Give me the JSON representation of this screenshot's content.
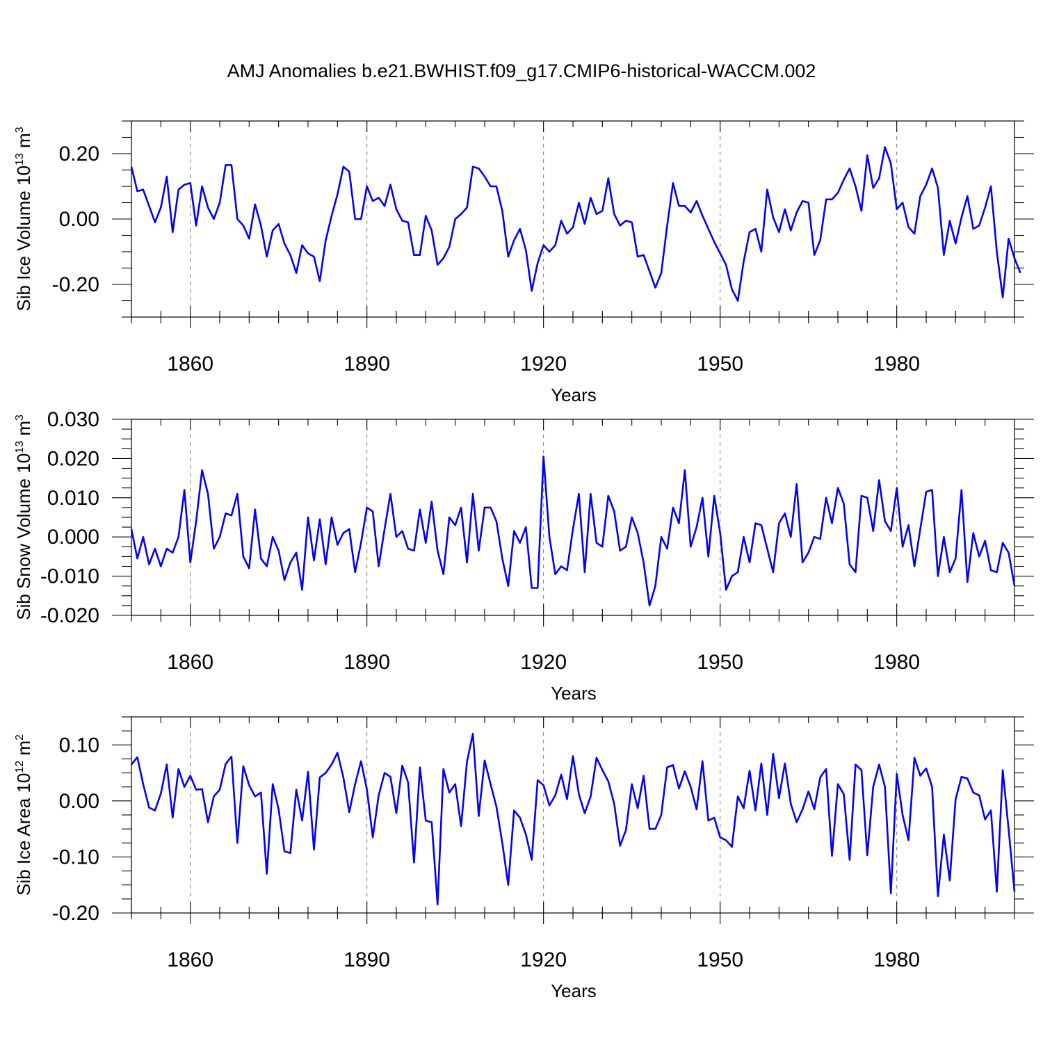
{
  "title": "AMJ Anomalies b.e21.BWHIST.f09_g17.CMIP6-historical-WACCM.002",
  "line_color": "#0000ff",
  "chart_data": [
    {
      "type": "line",
      "title": "AMJ Anomalies b.e21.BWHIST.f09_g17.CMIP6-historical-WACCM.002",
      "ylabel": "Sib Ice Volume 10",
      "ylabel_exp": "13",
      "ylabel_unit": " m",
      "ylabel_unit_exp": "3",
      "xlabel": "Years",
      "xlim": [
        1850,
        2000
      ],
      "ylim": [
        -0.3,
        0.3
      ],
      "yticks": [
        -0.2,
        0.0,
        0.2
      ],
      "ytick_labels": [
        "-0.20",
        "0.00",
        "0.20"
      ],
      "yminor": 0.05,
      "xticks": [
        1860,
        1890,
        1920,
        1950,
        1980
      ],
      "xtick_labels": [
        "1860",
        "1890",
        "1920",
        "1950",
        "1980"
      ],
      "x_start": 1850,
      "grid": "vertical dashed at major x ticks",
      "values": [
        0.16,
        0.085,
        0.09,
        0.04,
        -0.01,
        0.035,
        0.13,
        -0.04,
        0.09,
        0.105,
        0.11,
        -0.02,
        0.1,
        0.035,
        0.0,
        0.05,
        0.165,
        0.165,
        0.0,
        -0.02,
        -0.06,
        0.045,
        -0.02,
        -0.115,
        -0.035,
        -0.015,
        -0.075,
        -0.11,
        -0.165,
        -0.08,
        -0.105,
        -0.115,
        -0.19,
        -0.065,
        0.01,
        0.075,
        0.16,
        0.145,
        0.0,
        0.0,
        0.1,
        0.055,
        0.065,
        0.04,
        0.105,
        0.03,
        -0.005,
        -0.01,
        -0.11,
        -0.11,
        0.01,
        -0.035,
        -0.14,
        -0.12,
        -0.085,
        0.0,
        0.015,
        0.035,
        0.16,
        0.155,
        0.13,
        0.1,
        0.1,
        0.025,
        -0.115,
        -0.065,
        -0.03,
        -0.095,
        -0.22,
        -0.135,
        -0.08,
        -0.1,
        -0.08,
        -0.005,
        -0.045,
        -0.025,
        0.05,
        -0.015,
        0.065,
        0.015,
        0.025,
        0.125,
        0.015,
        -0.02,
        -0.005,
        -0.01,
        -0.115,
        -0.11,
        -0.16,
        -0.21,
        -0.165,
        -0.02,
        0.11,
        0.04,
        0.04,
        0.02,
        0.055,
        0.01,
        -0.03,
        -0.07,
        -0.105,
        -0.14,
        -0.215,
        -0.25,
        -0.13,
        -0.04,
        -0.03,
        -0.1,
        0.09,
        0.005,
        -0.04,
        0.03,
        -0.035,
        0.02,
        0.055,
        0.05,
        -0.11,
        -0.065,
        0.06,
        0.06,
        0.08,
        0.12,
        0.155,
        0.1,
        0.025,
        0.195,
        0.095,
        0.125,
        0.22,
        0.17,
        0.03,
        0.05,
        -0.025,
        -0.045,
        0.07,
        0.105,
        0.155,
        0.095,
        -0.11,
        -0.005,
        -0.075,
        0.005,
        0.07,
        -0.03,
        -0.02,
        0.035,
        0.1,
        -0.1,
        -0.24,
        -0.06,
        -0.12,
        -0.165
      ]
    },
    {
      "type": "line",
      "ylabel": "Sib Snow Volume 10",
      "ylabel_exp": "13",
      "ylabel_unit": " m",
      "ylabel_unit_exp": "3",
      "xlabel": "Years",
      "xlim": [
        1850,
        2000
      ],
      "ylim": [
        -0.02,
        0.03
      ],
      "yticks": [
        -0.02,
        -0.01,
        0.0,
        0.01,
        0.02,
        0.03
      ],
      "ytick_labels": [
        "-0.020",
        "-0.010",
        "0.000",
        "0.010",
        "0.020",
        "0.030"
      ],
      "yminor": 0.0025,
      "xticks": [
        1860,
        1890,
        1920,
        1950,
        1980
      ],
      "xtick_labels": [
        "1860",
        "1890",
        "1920",
        "1950",
        "1980"
      ],
      "x_start": 1850,
      "grid": "vertical dashed at major x ticks",
      "values": [
        0.002,
        -0.0055,
        0.0,
        -0.007,
        -0.003,
        -0.0075,
        -0.003,
        -0.004,
        0.0,
        0.012,
        -0.0065,
        0.004,
        0.017,
        0.011,
        -0.003,
        0.0,
        0.006,
        0.0055,
        0.011,
        -0.005,
        -0.008,
        0.007,
        -0.0055,
        -0.0075,
        0.0,
        -0.0035,
        -0.011,
        -0.0065,
        -0.004,
        -0.0135,
        0.005,
        -0.006,
        0.0045,
        -0.007,
        0.005,
        -0.002,
        0.001,
        0.002,
        -0.009,
        -0.0015,
        0.0075,
        0.0065,
        -0.0075,
        0.002,
        0.011,
        0.0,
        0.0015,
        -0.003,
        -0.0035,
        0.007,
        -0.0015,
        0.009,
        -0.0035,
        -0.0095,
        0.005,
        0.003,
        0.0075,
        -0.0065,
        0.011,
        -0.0035,
        0.0075,
        0.0075,
        0.004,
        -0.0055,
        -0.0125,
        0.0015,
        -0.0015,
        0.0025,
        -0.013,
        -0.013,
        0.0205,
        0.0,
        -0.0095,
        -0.0075,
        -0.0085,
        0.002,
        0.011,
        -0.009,
        0.011,
        -0.0015,
        -0.0025,
        0.0105,
        0.0065,
        -0.0035,
        -0.0025,
        0.005,
        0.001,
        -0.0065,
        -0.0175,
        -0.0125,
        0.0,
        -0.003,
        0.0075,
        0.0035,
        0.017,
        -0.0025,
        0.0025,
        0.01,
        -0.005,
        0.0105,
        0.001,
        -0.0135,
        -0.01,
        -0.009,
        0.0,
        -0.0065,
        0.0035,
        0.003,
        -0.003,
        -0.009,
        0.0035,
        0.006,
        0.0,
        0.0135,
        -0.0065,
        -0.004,
        0.0,
        -0.0005,
        0.01,
        0.0035,
        0.0125,
        0.0085,
        -0.007,
        -0.009,
        0.0105,
        0.01,
        0.0015,
        0.0145,
        0.004,
        0.0015,
        0.0125,
        -0.0025,
        0.003,
        -0.0075,
        0.002,
        0.0115,
        0.012,
        -0.01,
        0.0,
        -0.009,
        -0.0055,
        0.012,
        -0.0115,
        0.001,
        -0.005,
        -0.001,
        -0.0085,
        -0.009,
        -0.0015,
        -0.004,
        -0.0125
      ]
    },
    {
      "type": "line",
      "ylabel": "Sib Ice Area 10",
      "ylabel_exp": "12",
      "ylabel_unit": " m",
      "ylabel_unit_exp": "2",
      "xlabel": "Years",
      "xlim": [
        1850,
        2000
      ],
      "ylim": [
        -0.2,
        0.15
      ],
      "yticks": [
        -0.2,
        -0.1,
        0.0,
        0.1
      ],
      "ytick_labels": [
        "-0.20",
        "-0.10",
        "0.00",
        "0.10"
      ],
      "yminor": 0.025,
      "xticks": [
        1860,
        1890,
        1920,
        1950,
        1980
      ],
      "xtick_labels": [
        "1860",
        "1890",
        "1920",
        "1950",
        "1980"
      ],
      "x_start": 1850,
      "grid": "vertical dashed at major x ticks",
      "values": [
        0.065,
        0.078,
        0.03,
        -0.012,
        -0.017,
        0.013,
        0.065,
        -0.03,
        0.057,
        0.025,
        0.045,
        0.02,
        0.021,
        -0.038,
        0.008,
        0.02,
        0.066,
        0.079,
        -0.075,
        0.062,
        0.028,
        0.008,
        0.015,
        -0.13,
        0.03,
        -0.015,
        -0.09,
        -0.093,
        0.02,
        -0.035,
        0.052,
        -0.087,
        0.042,
        0.05,
        0.065,
        0.086,
        0.042,
        -0.02,
        0.03,
        0.071,
        0.02,
        -0.065,
        0.01,
        0.05,
        0.043,
        -0.022,
        0.063,
        0.033,
        -0.11,
        0.06,
        -0.035,
        -0.038,
        -0.185,
        0.057,
        0.015,
        0.03,
        -0.045,
        0.07,
        0.12,
        -0.027,
        0.072,
        0.03,
        -0.01,
        -0.075,
        -0.15,
        -0.017,
        -0.03,
        -0.06,
        -0.105,
        0.037,
        0.028,
        -0.008,
        0.01,
        0.047,
        0.003,
        0.08,
        0.012,
        -0.022,
        0.008,
        0.077,
        0.055,
        0.035,
        -0.005,
        -0.08,
        -0.052,
        0.03,
        -0.013,
        0.045,
        -0.05,
        -0.05,
        -0.025,
        0.06,
        0.064,
        0.022,
        0.053,
        0.025,
        -0.015,
        0.071,
        -0.035,
        -0.03,
        -0.065,
        -0.07,
        -0.082,
        0.008,
        -0.013,
        0.054,
        -0.017,
        0.067,
        -0.025,
        0.084,
        0.005,
        0.067,
        -0.005,
        -0.038,
        -0.015,
        0.017,
        -0.015,
        0.042,
        0.057,
        -0.098,
        0.03,
        0.012,
        -0.105,
        0.065,
        0.055,
        -0.097,
        0.025,
        0.065,
        0.025,
        -0.165,
        0.048,
        -0.025,
        -0.07,
        0.077,
        0.045,
        0.058,
        0.025,
        -0.17,
        -0.06,
        -0.142,
        0.003,
        0.043,
        0.04,
        0.015,
        0.01,
        -0.033,
        -0.017,
        -0.162,
        0.055,
        -0.05,
        -0.162
      ]
    }
  ]
}
